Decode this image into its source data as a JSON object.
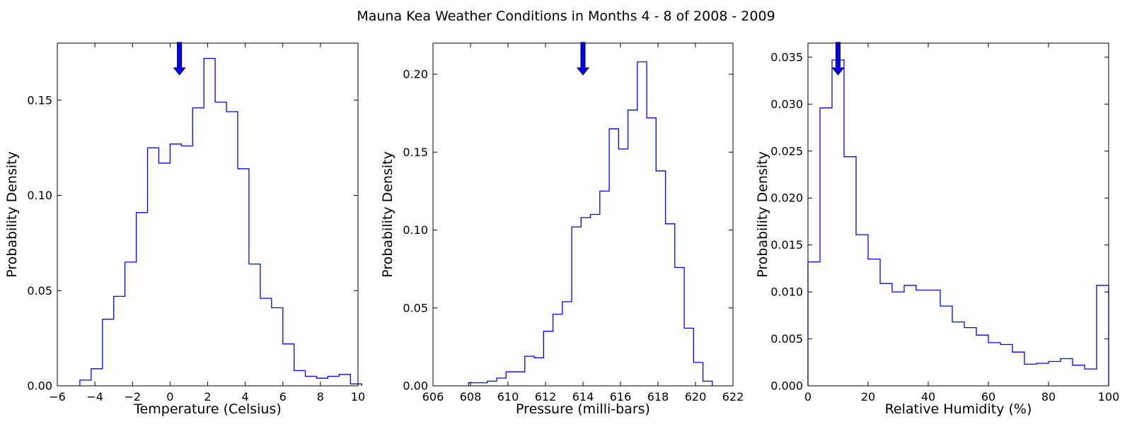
{
  "title": "Mauna Kea Weather Conditions in Months 4 - 8 of 2008 - 2009",
  "chart_data": [
    {
      "type": "histogram",
      "xlabel": "Temperature (Celsius)",
      "ylabel": "Probability Density",
      "xlim": [
        -6,
        10
      ],
      "ylim": [
        0,
        0.18
      ],
      "xticks": [
        -6,
        -4,
        -2,
        0,
        2,
        4,
        6,
        8,
        10
      ],
      "xtick_labels": [
        "−6",
        "−4",
        "−2",
        "0",
        "2",
        "4",
        "6",
        "8",
        "10"
      ],
      "yticks": [
        0,
        0.05,
        0.1,
        0.15
      ],
      "ytick_labels": [
        "0.00",
        "0.05",
        "0.10",
        "0.15"
      ],
      "bin_edges": [
        -4.8,
        -4.2,
        -3.6,
        -3.0,
        -2.4,
        -1.8,
        -1.2,
        -0.6,
        0.0,
        0.6,
        1.2,
        1.8,
        2.4,
        3.0,
        3.6,
        4.2,
        4.8,
        5.4,
        6.0,
        6.6,
        7.2,
        7.8,
        8.4,
        9.0,
        9.6,
        10.2
      ],
      "densities": [
        0.003,
        0.009,
        0.035,
        0.047,
        0.065,
        0.091,
        0.125,
        0.117,
        0.127,
        0.126,
        0.146,
        0.172,
        0.149,
        0.144,
        0.114,
        0.064,
        0.046,
        0.041,
        0.022,
        0.008,
        0.005,
        0.004,
        0.005,
        0.006,
        0.001
      ],
      "marker": 0.5,
      "color": "#0000ff",
      "marker_color": "#0000ff"
    },
    {
      "type": "histogram",
      "xlabel": "Pressure (milli-bars)",
      "ylabel": "Probability Density",
      "xlim": [
        606,
        622
      ],
      "ylim": [
        0,
        0.22
      ],
      "xticks": [
        606,
        608,
        610,
        612,
        614,
        616,
        618,
        620,
        622
      ],
      "xtick_labels": [
        "606",
        "608",
        "610",
        "612",
        "614",
        "616",
        "618",
        "620",
        "622"
      ],
      "yticks": [
        0,
        0.05,
        0.1,
        0.15,
        0.2
      ],
      "ytick_labels": [
        "0.00",
        "0.05",
        "0.10",
        "0.15",
        "0.20"
      ],
      "bin_edges": [
        607.9,
        608.4,
        608.9,
        609.4,
        609.9,
        610.4,
        610.9,
        611.4,
        611.9,
        612.4,
        612.9,
        613.4,
        613.9,
        614.4,
        614.9,
        615.4,
        615.9,
        616.4,
        616.9,
        617.4,
        617.9,
        618.4,
        618.9,
        619.4,
        619.9,
        620.4,
        620.9
      ],
      "densities": [
        0.002,
        0.002,
        0.003,
        0.005,
        0.009,
        0.009,
        0.019,
        0.018,
        0.035,
        0.046,
        0.054,
        0.102,
        0.108,
        0.11,
        0.125,
        0.165,
        0.152,
        0.177,
        0.208,
        0.172,
        0.138,
        0.104,
        0.076,
        0.037,
        0.015,
        0.003
      ],
      "marker": 614,
      "color": "#0000ff",
      "marker_color": "#0000ff"
    },
    {
      "type": "histogram",
      "xlabel": "Relative Humidity (%)",
      "ylabel": "Probability Density",
      "xlim": [
        0,
        100
      ],
      "ylim": [
        0,
        0.0365
      ],
      "xticks": [
        0,
        20,
        40,
        60,
        80,
        100
      ],
      "xtick_labels": [
        "0",
        "20",
        "40",
        "60",
        "80",
        "100"
      ],
      "yticks": [
        0,
        0.005,
        0.01,
        0.015,
        0.02,
        0.025,
        0.03,
        0.035
      ],
      "ytick_labels": [
        "0.000",
        "0.005",
        "0.010",
        "0.015",
        "0.020",
        "0.025",
        "0.030",
        "0.035"
      ],
      "bin_edges": [
        0,
        4,
        8,
        12,
        16,
        20,
        24,
        28,
        32,
        36,
        40,
        44,
        48,
        52,
        56,
        60,
        64,
        68,
        72,
        76,
        80,
        84,
        88,
        92,
        96,
        100
      ],
      "densities": [
        0.0132,
        0.0296,
        0.0347,
        0.0244,
        0.0161,
        0.0135,
        0.0109,
        0.01,
        0.0107,
        0.0102,
        0.0102,
        0.0085,
        0.0068,
        0.0062,
        0.0054,
        0.0046,
        0.0044,
        0.0036,
        0.0023,
        0.0024,
        0.0026,
        0.0029,
        0.0022,
        0.0018,
        0.0107
      ],
      "marker": 10,
      "color": "#0000ff",
      "marker_color": "#0000ff"
    }
  ]
}
